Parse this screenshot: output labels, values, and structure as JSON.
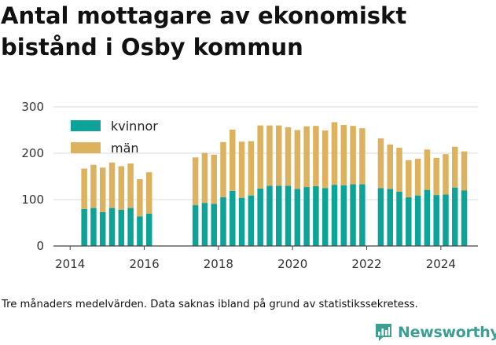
{
  "title": "Antal mottagare av ekonomiskt bistånd i Osby kommun",
  "caption": "Tre månaders medelvärden. Data saknas ibland på grund av statistikssekretess.",
  "brand": {
    "name": "Newsworthy",
    "icon": "newsworthy-logo-icon"
  },
  "colors": {
    "kvinnor": "#0ea399",
    "man": "#ddb25e",
    "axis": "#444444",
    "grid": "#d9d9d9"
  },
  "chart_data": {
    "type": "bar",
    "stacked": true,
    "title": "Antal mottagare av ekonomiskt bistånd i Osby kommun",
    "xlabel": "",
    "ylabel": "",
    "ylim": [
      0,
      300
    ],
    "y_ticks": [
      0,
      100,
      200,
      300
    ],
    "x_ticks": [
      2014,
      2016,
      2018,
      2020,
      2022,
      2024
    ],
    "x_range": [
      2013.55,
      2025.0
    ],
    "grid": "horizontal",
    "legend": "top-left",
    "x": [
      2014.38,
      2014.63,
      2014.88,
      2015.13,
      2015.38,
      2015.63,
      2015.88,
      2016.13,
      2017.38,
      2017.63,
      2017.88,
      2018.13,
      2018.38,
      2018.63,
      2018.88,
      2019.13,
      2019.38,
      2019.63,
      2019.88,
      2020.13,
      2020.38,
      2020.63,
      2020.88,
      2021.13,
      2021.38,
      2021.63,
      2021.88,
      2022.38,
      2022.63,
      2022.88,
      2023.13,
      2023.38,
      2023.63,
      2023.88,
      2024.13,
      2024.38,
      2024.63
    ],
    "series": [
      {
        "name": "kvinnor",
        "values": [
          80,
          82,
          73,
          82,
          78,
          82,
          64,
          70,
          88,
          93,
          91,
          105,
          119,
          104,
          109,
          124,
          130,
          130,
          130,
          123,
          127,
          129,
          125,
          132,
          131,
          133,
          133,
          125,
          123,
          117,
          105,
          109,
          121,
          110,
          111,
          126,
          120
        ]
      },
      {
        "name": "män",
        "values": [
          87,
          93,
          96,
          98,
          94,
          96,
          80,
          89,
          103,
          108,
          106,
          119,
          132,
          121,
          117,
          136,
          130,
          130,
          126,
          127,
          131,
          130,
          124,
          135,
          130,
          126,
          121,
          107,
          96,
          95,
          80,
          79,
          87,
          80,
          87,
          88,
          84
        ]
      }
    ]
  }
}
